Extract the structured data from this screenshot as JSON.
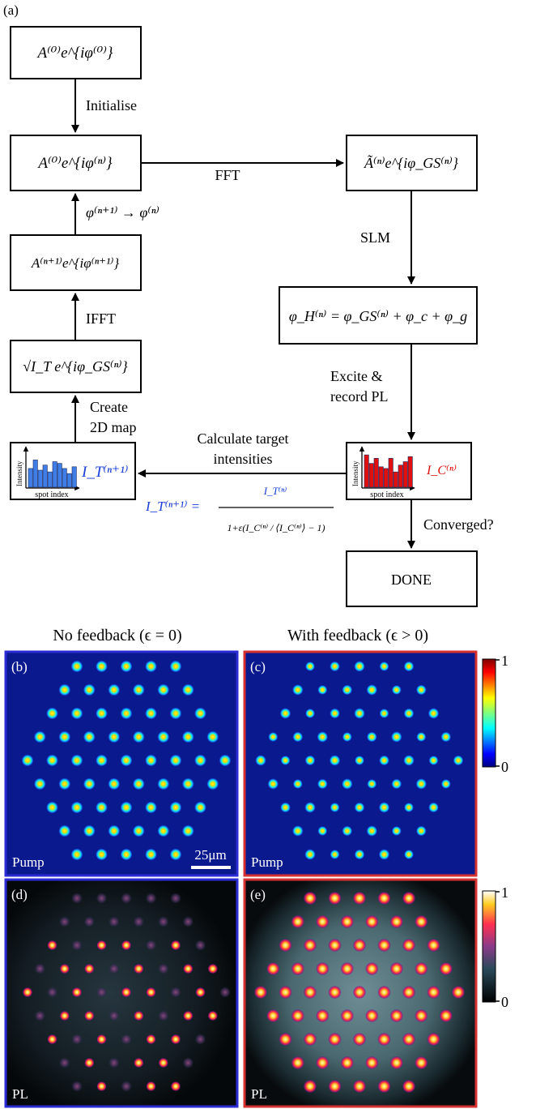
{
  "flowchart": {
    "panel_label": "(a)",
    "boxes": {
      "init": "A⁽⁰⁾e^{iφ⁽⁰⁾}",
      "current": "A⁽⁰⁾e^{iφ⁽ⁿ⁾}",
      "fft_result": "Ã⁽ⁿ⁾e^{iφ_GS⁽ⁿ⁾}",
      "next": "A⁽ⁿ⁺¹⁾e^{iφ⁽ⁿ⁺¹⁾}",
      "hologram": "φ_H⁽ⁿ⁾ = φ_GS⁽ⁿ⁾ + φ_c + φ_g",
      "target_field": "√I_T e^{iφ_GS⁽ⁿ⁾}",
      "done": "DONE"
    },
    "steps": {
      "initialise": "Initialise",
      "fft": "FFT",
      "update": "φ⁽ⁿ⁺¹⁾ → φ⁽ⁿ⁾",
      "slm": "SLM",
      "ifft": "IFFT",
      "excite_line1": "Excite &",
      "excite_line2": "record PL",
      "create_line1": "Create",
      "create_line2": "2D map",
      "calc_line1": "Calculate target",
      "calc_line2": "intensities",
      "converged": "Converged?"
    },
    "histograms": {
      "ylabel": "Intensity",
      "xlabel": "spot index",
      "target_label": "I_T⁽ⁿ⁺¹⁾",
      "target_color": "#1a3fd6",
      "target_bar_color": "#3f7ee6",
      "measured_label": "I_C⁽ⁿ⁾",
      "measured_color": "#e01010",
      "measured_bar_color": "#e01010",
      "target_bar_values": [
        0.55,
        0.8,
        0.5,
        0.65,
        0.45,
        0.75,
        0.7,
        0.55,
        0.4,
        0.6
      ],
      "measured_bar_values": [
        0.95,
        0.7,
        0.85,
        0.6,
        0.55,
        0.85,
        0.45,
        0.65,
        0.75,
        0.9
      ]
    },
    "equation": {
      "lhs": "I_T⁽ⁿ⁺¹⁾ =",
      "numerator": "I_T⁽ⁿ⁾",
      "denominator": "1+ε(I_C⁽ⁿ⁾ / ⟨I_C⁽ⁿ⁾⟩ − 1)"
    }
  },
  "images": {
    "header_left": "No feedback  (ϵ = 0)",
    "header_right": "With feedback  (ϵ > 0)",
    "b": {
      "label": "(b)",
      "caption": "Pump",
      "scalebar": "25μm",
      "border": "#2b2bd6"
    },
    "c": {
      "label": "(c)",
      "caption": "Pump",
      "border": "#d63030"
    },
    "d": {
      "label": "(d)",
      "caption": "PL",
      "border": "#2b2bd6"
    },
    "e": {
      "label": "(e)",
      "caption": "PL",
      "border": "#d63030"
    },
    "colorbar_top": {
      "max": "1",
      "min": "0",
      "colormap": "jet"
    },
    "colorbar_bottom": {
      "max": "1",
      "min": "0",
      "colormap": "hot"
    },
    "lattice_row_counts": [
      5,
      6,
      7,
      8,
      9,
      8,
      7,
      6,
      5
    ]
  }
}
